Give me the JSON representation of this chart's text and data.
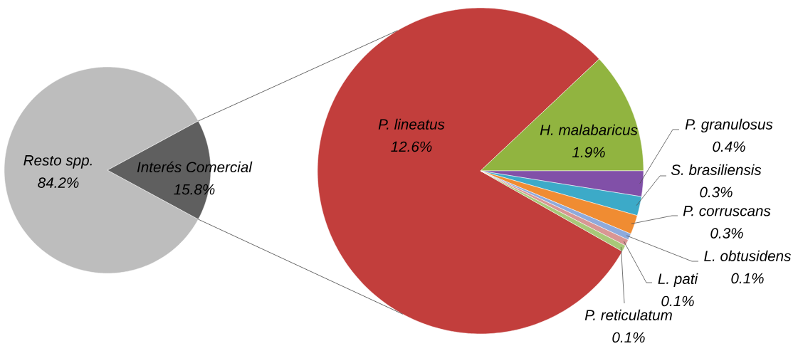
{
  "chart_data": [
    {
      "type": "pie",
      "categories": [
        "Resto spp.",
        "Interés Comercial"
      ],
      "values": [
        84.2,
        15.8
      ],
      "colors": [
        "#bdbdbd",
        "#5f5f5f"
      ],
      "value_labels": [
        "84.2%",
        "15.8%"
      ]
    },
    {
      "type": "pie",
      "categories": [
        "P. lineatus",
        "H. malabaricus",
        "P. granulosus",
        "S. brasiliensis",
        "P. corruscans",
        "L. obtusidens",
        "L. pati",
        "P. reticulatum"
      ],
      "values": [
        12.6,
        1.9,
        0.4,
        0.3,
        0.3,
        0.1,
        0.1,
        0.1
      ],
      "colors": [
        "#c23e3c",
        "#91b440",
        "#8150a8",
        "#3caac8",
        "#f08c32",
        "#8eaadc",
        "#d99694",
        "#a8c878"
      ],
      "value_labels": [
        "12.6%",
        "1.9%",
        "0.4%",
        "0.3%",
        "0.3%",
        "0.1%",
        "0.1%",
        "0.1%"
      ]
    }
  ]
}
